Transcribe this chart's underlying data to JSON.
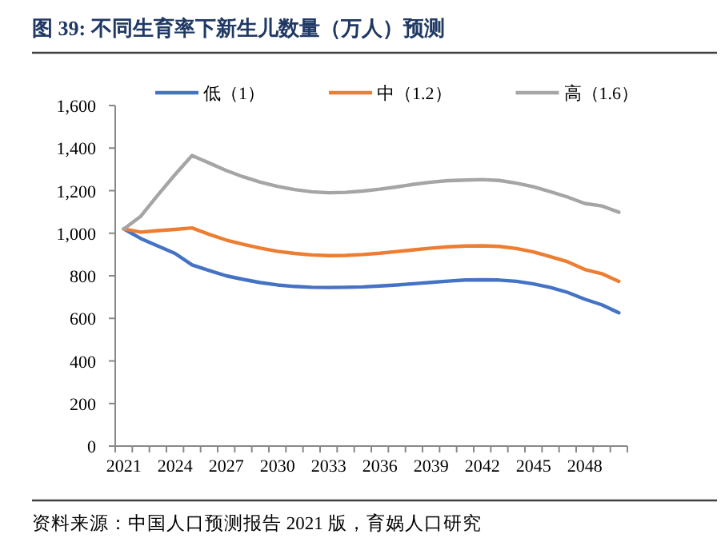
{
  "chart_data": {
    "type": "line",
    "title": "图 39: 不同生育率下新生儿数量（万人）预测",
    "categories": [
      "2021",
      null,
      null,
      "2024",
      null,
      null,
      "2027",
      null,
      null,
      "2030",
      null,
      null,
      "2033",
      null,
      null,
      "2036",
      null,
      null,
      "2039",
      null,
      null,
      "2042",
      null,
      null,
      "2045",
      null,
      null,
      "2048",
      null,
      null
    ],
    "series": [
      {
        "name": "低（1）",
        "color": "#4472c4",
        "values": [
          1020,
          975,
          940,
          905,
          851,
          825,
          800,
          783,
          768,
          757,
          750,
          746,
          745,
          746,
          748,
          752,
          757,
          763,
          769,
          775,
          780,
          781,
          780,
          774,
          762,
          745,
          722,
          690,
          664,
          626
        ]
      },
      {
        "name": "中（1.2）",
        "color": "#ed7d31",
        "values": [
          1020,
          1005,
          1012,
          1018,
          1025,
          995,
          968,
          948,
          930,
          915,
          905,
          898,
          895,
          896,
          900,
          906,
          914,
          922,
          930,
          936,
          940,
          941,
          938,
          928,
          912,
          890,
          866,
          830,
          810,
          774
        ]
      },
      {
        "name": "高（1.6）",
        "color": "#a5a5a5",
        "values": [
          1020,
          1080,
          1180,
          1275,
          1365,
          1330,
          1295,
          1265,
          1240,
          1220,
          1205,
          1195,
          1190,
          1192,
          1198,
          1207,
          1218,
          1230,
          1240,
          1247,
          1250,
          1252,
          1248,
          1235,
          1218,
          1195,
          1170,
          1140,
          1128,
          1099
        ]
      }
    ],
    "ylim": [
      0,
      1600
    ],
    "yticks": [
      {
        "value": 0,
        "label": "0"
      },
      {
        "value": 200,
        "label": "200"
      },
      {
        "value": 400,
        "label": "400"
      },
      {
        "value": 600,
        "label": "600"
      },
      {
        "value": 800,
        "label": "800"
      },
      {
        "value": 1000,
        "label": "1,000"
      },
      {
        "value": 1200,
        "label": "1,200"
      },
      {
        "value": 1400,
        "label": "1,400"
      },
      {
        "value": 1600,
        "label": "1,600"
      }
    ],
    "grid": false,
    "legend": "top",
    "marker": "none",
    "line_style": "solid",
    "annotations": [
      "资料来源：中国人口预测报告 2021 版，育娲人口研究"
    ]
  }
}
